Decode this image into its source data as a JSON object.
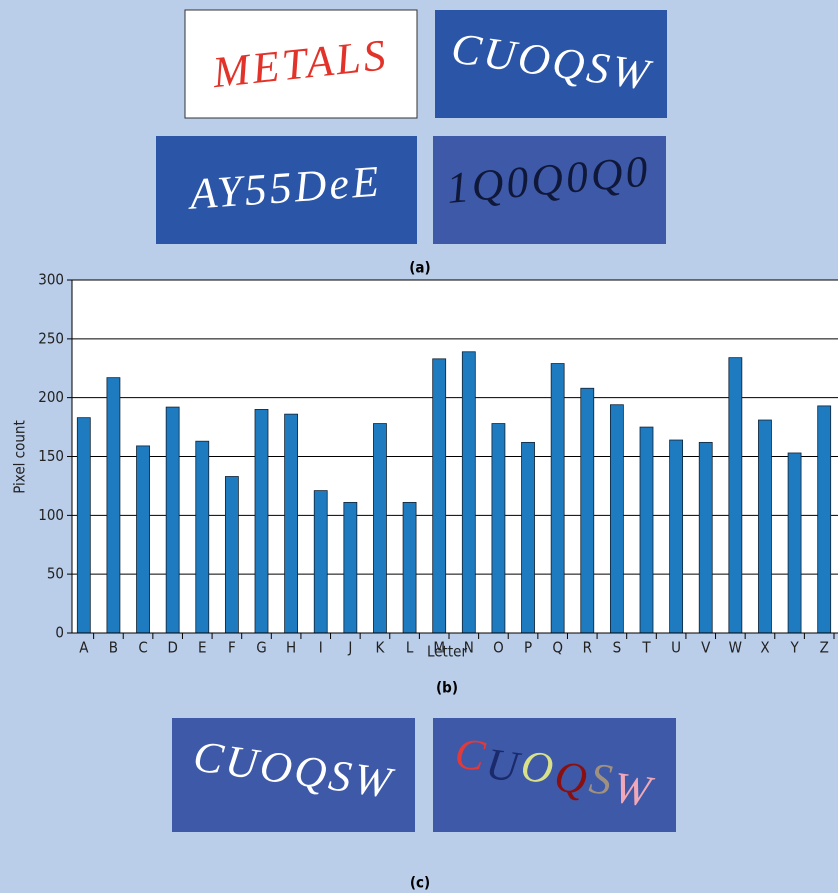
{
  "panels": {
    "a": {
      "caption": "(a)",
      "captchas": [
        "METALS",
        "CUOQSW",
        "AY55DeE",
        "1Q0Q0Q0"
      ]
    },
    "c": {
      "caption": "(c)",
      "plain": "CUOQSW",
      "segmented": [
        "C",
        "U",
        "O",
        "Q",
        "S",
        "W"
      ],
      "segment_colors": [
        "#e03a3a",
        "#1a2a6a",
        "#d8e08a",
        "#8a1010",
        "#a09080",
        "#f0a8b8"
      ]
    }
  },
  "chart_data": {
    "type": "bar",
    "caption": "(b)",
    "xlabel": "Letter",
    "ylabel": "Pixel count",
    "categories": [
      "A",
      "B",
      "C",
      "D",
      "E",
      "F",
      "G",
      "H",
      "I",
      "J",
      "K",
      "L",
      "M",
      "N",
      "O",
      "P",
      "Q",
      "R",
      "S",
      "T",
      "U",
      "V",
      "W",
      "X",
      "Y",
      "Z"
    ],
    "values": [
      183,
      217,
      159,
      192,
      163,
      133,
      190,
      186,
      121,
      111,
      178,
      111,
      233,
      239,
      178,
      162,
      229,
      208,
      194,
      175,
      164,
      162,
      234,
      181,
      153,
      193
    ],
    "color": "#1f7bc0",
    "ylim": [
      0,
      300
    ],
    "yticks": [
      0,
      50,
      100,
      150,
      200,
      250,
      300
    ],
    "grid": true
  }
}
